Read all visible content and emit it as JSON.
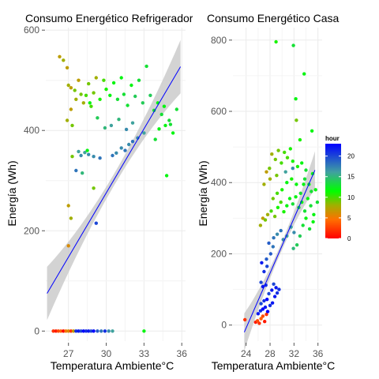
{
  "legend": {
    "title": "hour",
    "ticks": [
      0,
      5,
      10,
      15,
      20
    ],
    "range": [
      0,
      23
    ],
    "colors": {
      "low": "#ff0000",
      "mid": "#00ff00",
      "high": "#0000ff"
    }
  },
  "chart_data": [
    {
      "type": "scatter",
      "title": "Consumo Energético Refrigerador",
      "xlabel": "Temperatura Ambiente°C",
      "ylabel": "Energía (Wh)",
      "xlim": [
        25.2,
        36.3
      ],
      "ylim": [
        -20,
        605
      ],
      "xticks": [
        27,
        30,
        33,
        36
      ],
      "yticks": [
        0,
        200,
        400,
        600
      ],
      "grid": true,
      "color_by": "hour",
      "trend": {
        "x": [
          25.3,
          35.9
        ],
        "y": [
          75,
          527
        ],
        "color": "#0000ff",
        "band": true
      },
      "points": [
        {
          "x": 25.8,
          "y": 0,
          "hour": 2
        },
        {
          "x": 26.0,
          "y": 0,
          "hour": 1
        },
        {
          "x": 26.2,
          "y": 0,
          "hour": 3
        },
        {
          "x": 26.4,
          "y": 0,
          "hour": 4
        },
        {
          "x": 26.6,
          "y": 0,
          "hour": 0
        },
        {
          "x": 26.8,
          "y": 0,
          "hour": 5
        },
        {
          "x": 27.0,
          "y": 0,
          "hour": 6
        },
        {
          "x": 27.2,
          "y": 0,
          "hour": 2
        },
        {
          "x": 27.4,
          "y": 0,
          "hour": 7
        },
        {
          "x": 27.6,
          "y": 0,
          "hour": 21
        },
        {
          "x": 27.8,
          "y": 0,
          "hour": 22
        },
        {
          "x": 28.0,
          "y": 0,
          "hour": 20
        },
        {
          "x": 28.2,
          "y": 0,
          "hour": 23
        },
        {
          "x": 28.4,
          "y": 0,
          "hour": 21
        },
        {
          "x": 28.6,
          "y": 0,
          "hour": 22
        },
        {
          "x": 28.8,
          "y": 0,
          "hour": 20
        },
        {
          "x": 29.0,
          "y": 0,
          "hour": 23
        },
        {
          "x": 29.3,
          "y": 0,
          "hour": 19
        },
        {
          "x": 29.6,
          "y": 0,
          "hour": 18
        },
        {
          "x": 29.9,
          "y": 0,
          "hour": 21
        },
        {
          "x": 30.2,
          "y": 0,
          "hour": 17
        },
        {
          "x": 30.5,
          "y": 0,
          "hour": 16
        },
        {
          "x": 33.0,
          "y": 0,
          "hour": 12
        },
        {
          "x": 26.3,
          "y": 547,
          "hour": 7
        },
        {
          "x": 26.6,
          "y": 540,
          "hour": 8
        },
        {
          "x": 26.9,
          "y": 525,
          "hour": 7
        },
        {
          "x": 27.0,
          "y": 490,
          "hour": 8
        },
        {
          "x": 27.2,
          "y": 485,
          "hour": 7
        },
        {
          "x": 27.5,
          "y": 480,
          "hour": 9
        },
        {
          "x": 27.6,
          "y": 462,
          "hour": 8
        },
        {
          "x": 27.8,
          "y": 500,
          "hour": 7
        },
        {
          "x": 28.0,
          "y": 472,
          "hour": 9
        },
        {
          "x": 28.2,
          "y": 455,
          "hour": 8
        },
        {
          "x": 28.4,
          "y": 470,
          "hour": 10
        },
        {
          "x": 28.6,
          "y": 493,
          "hour": 9
        },
        {
          "x": 28.8,
          "y": 448,
          "hour": 10
        },
        {
          "x": 29.0,
          "y": 475,
          "hour": 9
        },
        {
          "x": 29.2,
          "y": 505,
          "hour": 8
        },
        {
          "x": 29.5,
          "y": 462,
          "hour": 11
        },
        {
          "x": 29.8,
          "y": 500,
          "hour": 10
        },
        {
          "x": 30.0,
          "y": 482,
          "hour": 11
        },
        {
          "x": 30.3,
          "y": 470,
          "hour": 12
        },
        {
          "x": 30.6,
          "y": 495,
          "hour": 12
        },
        {
          "x": 30.9,
          "y": 462,
          "hour": 13
        },
        {
          "x": 31.2,
          "y": 505,
          "hour": 12
        },
        {
          "x": 31.4,
          "y": 472,
          "hour": 13
        },
        {
          "x": 31.7,
          "y": 450,
          "hour": 13
        },
        {
          "x": 32.0,
          "y": 490,
          "hour": 12
        },
        {
          "x": 32.3,
          "y": 468,
          "hour": 14
        },
        {
          "x": 32.6,
          "y": 500,
          "hour": 13
        },
        {
          "x": 32.9,
          "y": 455,
          "hour": 14
        },
        {
          "x": 33.2,
          "y": 528,
          "hour": 13
        },
        {
          "x": 33.5,
          "y": 470,
          "hour": 14
        },
        {
          "x": 33.8,
          "y": 440,
          "hour": 13
        },
        {
          "x": 34.1,
          "y": 455,
          "hour": 12
        },
        {
          "x": 34.4,
          "y": 432,
          "hour": 13
        },
        {
          "x": 34.7,
          "y": 410,
          "hour": 12
        },
        {
          "x": 35.0,
          "y": 420,
          "hour": 13
        },
        {
          "x": 35.3,
          "y": 395,
          "hour": 12
        },
        {
          "x": 35.6,
          "y": 442,
          "hour": 13
        },
        {
          "x": 34.2,
          "y": 403,
          "hour": 12
        },
        {
          "x": 33.9,
          "y": 382,
          "hour": 13
        },
        {
          "x": 34.6,
          "y": 448,
          "hour": 12
        },
        {
          "x": 35.1,
          "y": 412,
          "hour": 13
        },
        {
          "x": 34.8,
          "y": 310,
          "hour": 12
        },
        {
          "x": 27.2,
          "y": 442,
          "hour": 7
        },
        {
          "x": 26.9,
          "y": 420,
          "hour": 8
        },
        {
          "x": 27.3,
          "y": 410,
          "hour": 9
        },
        {
          "x": 28.7,
          "y": 455,
          "hour": 12
        },
        {
          "x": 29.3,
          "y": 425,
          "hour": 14
        },
        {
          "x": 29.9,
          "y": 405,
          "hour": 15
        },
        {
          "x": 30.4,
          "y": 410,
          "hour": 16
        },
        {
          "x": 31.0,
          "y": 422,
          "hour": 15
        },
        {
          "x": 31.6,
          "y": 402,
          "hour": 17
        },
        {
          "x": 32.1,
          "y": 415,
          "hour": 16
        },
        {
          "x": 32.5,
          "y": 385,
          "hour": 17
        },
        {
          "x": 33.0,
          "y": 395,
          "hour": 16
        },
        {
          "x": 31.2,
          "y": 365,
          "hour": 17
        },
        {
          "x": 31.5,
          "y": 360,
          "hour": 18
        },
        {
          "x": 31.8,
          "y": 372,
          "hour": 17
        },
        {
          "x": 32.1,
          "y": 378,
          "hour": 18
        },
        {
          "x": 30.8,
          "y": 355,
          "hour": 17
        },
        {
          "x": 30.5,
          "y": 350,
          "hour": 18
        },
        {
          "x": 29.5,
          "y": 345,
          "hour": 18
        },
        {
          "x": 29.0,
          "y": 348,
          "hour": 17
        },
        {
          "x": 28.6,
          "y": 352,
          "hour": 17
        },
        {
          "x": 28.3,
          "y": 356,
          "hour": 16
        },
        {
          "x": 28.0,
          "y": 350,
          "hour": 17
        },
        {
          "x": 27.8,
          "y": 358,
          "hour": 16
        },
        {
          "x": 27.6,
          "y": 320,
          "hour": 18
        },
        {
          "x": 28.1,
          "y": 315,
          "hour": 15
        },
        {
          "x": 27.3,
          "y": 348,
          "hour": 9
        },
        {
          "x": 27.0,
          "y": 250,
          "hour": 7
        },
        {
          "x": 27.2,
          "y": 225,
          "hour": 8
        },
        {
          "x": 27.0,
          "y": 170,
          "hour": 6
        },
        {
          "x": 29.2,
          "y": 215,
          "hour": 20
        },
        {
          "x": 29.0,
          "y": 285,
          "hour": 9
        },
        {
          "x": 28.5,
          "y": 360,
          "hour": 12
        }
      ]
    },
    {
      "type": "scatter",
      "title": "Consumo Energético Casa",
      "xlabel": "Temperatura Ambiente°C",
      "ylabel": "Energía (Wh)",
      "xlim": [
        21.8,
        36.7
      ],
      "ylim": [
        -45,
        835
      ],
      "xticks": [
        24,
        28,
        32,
        36
      ],
      "yticks": [
        0,
        200,
        400,
        600,
        800
      ],
      "grid": true,
      "color_by": "hour",
      "trend": {
        "x": [
          23.7,
          35.5
        ],
        "y": [
          -20,
          435
        ],
        "color": "#0000ff",
        "band": true
      },
      "points": [
        {
          "x": 23.8,
          "y": 15,
          "hour": 2
        },
        {
          "x": 25.6,
          "y": 8,
          "hour": 1
        },
        {
          "x": 25.9,
          "y": 12,
          "hour": 3
        },
        {
          "x": 26.2,
          "y": 5,
          "hour": 2
        },
        {
          "x": 26.5,
          "y": 18,
          "hour": 4
        },
        {
          "x": 26.8,
          "y": 25,
          "hour": 3
        },
        {
          "x": 27.1,
          "y": 10,
          "hour": 1
        },
        {
          "x": 27.4,
          "y": 30,
          "hour": 2
        },
        {
          "x": 26.0,
          "y": 32,
          "hour": 22
        },
        {
          "x": 26.4,
          "y": 40,
          "hour": 21
        },
        {
          "x": 26.8,
          "y": 45,
          "hour": 23
        },
        {
          "x": 27.2,
          "y": 50,
          "hour": 22
        },
        {
          "x": 27.6,
          "y": 38,
          "hour": 23
        },
        {
          "x": 28.0,
          "y": 55,
          "hour": 21
        },
        {
          "x": 28.4,
          "y": 62,
          "hour": 22
        },
        {
          "x": 26.5,
          "y": 60,
          "hour": 20
        },
        {
          "x": 27.0,
          "y": 68,
          "hour": 21
        },
        {
          "x": 27.5,
          "y": 72,
          "hour": 23
        },
        {
          "x": 28.8,
          "y": 80,
          "hour": 22
        },
        {
          "x": 29.2,
          "y": 90,
          "hour": 21
        },
        {
          "x": 27.8,
          "y": 88,
          "hour": 20
        },
        {
          "x": 28.3,
          "y": 98,
          "hour": 22
        },
        {
          "x": 26.8,
          "y": 108,
          "hour": 22
        },
        {
          "x": 27.3,
          "y": 112,
          "hour": 21
        },
        {
          "x": 28.6,
          "y": 115,
          "hour": 20
        },
        {
          "x": 29.0,
          "y": 105,
          "hour": 22
        },
        {
          "x": 29.5,
          "y": 100,
          "hour": 21
        },
        {
          "x": 26.5,
          "y": 120,
          "hour": 20
        },
        {
          "x": 27.0,
          "y": 150,
          "hour": 21
        },
        {
          "x": 27.5,
          "y": 165,
          "hour": 20
        },
        {
          "x": 26.6,
          "y": 175,
          "hour": 22
        },
        {
          "x": 27.4,
          "y": 185,
          "hour": 19
        },
        {
          "x": 28.1,
          "y": 200,
          "hour": 19
        },
        {
          "x": 28.5,
          "y": 220,
          "hour": 18
        },
        {
          "x": 27.8,
          "y": 230,
          "hour": 19
        },
        {
          "x": 28.6,
          "y": 245,
          "hour": 18
        },
        {
          "x": 29.2,
          "y": 255,
          "hour": 17
        },
        {
          "x": 29.8,
          "y": 265,
          "hour": 18
        },
        {
          "x": 30.2,
          "y": 240,
          "hour": 17
        },
        {
          "x": 30.8,
          "y": 250,
          "hour": 16
        },
        {
          "x": 31.5,
          "y": 275,
          "hour": 16
        },
        {
          "x": 32.0,
          "y": 260,
          "hour": 17
        },
        {
          "x": 26.4,
          "y": 280,
          "hour": 8
        },
        {
          "x": 26.8,
          "y": 300,
          "hour": 7
        },
        {
          "x": 27.2,
          "y": 295,
          "hour": 9
        },
        {
          "x": 27.6,
          "y": 310,
          "hour": 8
        },
        {
          "x": 28.2,
          "y": 320,
          "hour": 10
        },
        {
          "x": 28.8,
          "y": 305,
          "hour": 9
        },
        {
          "x": 29.3,
          "y": 330,
          "hour": 11
        },
        {
          "x": 29.8,
          "y": 345,
          "hour": 10
        },
        {
          "x": 30.3,
          "y": 318,
          "hour": 11
        },
        {
          "x": 30.8,
          "y": 335,
          "hour": 12
        },
        {
          "x": 31.3,
          "y": 355,
          "hour": 12
        },
        {
          "x": 31.8,
          "y": 340,
          "hour": 13
        },
        {
          "x": 32.3,
          "y": 360,
          "hour": 12
        },
        {
          "x": 32.8,
          "y": 330,
          "hour": 13
        },
        {
          "x": 33.3,
          "y": 345,
          "hour": 12
        },
        {
          "x": 33.8,
          "y": 320,
          "hour": 13
        },
        {
          "x": 34.3,
          "y": 355,
          "hour": 12
        },
        {
          "x": 34.8,
          "y": 335,
          "hour": 13
        },
        {
          "x": 35.3,
          "y": 310,
          "hour": 12
        },
        {
          "x": 33.5,
          "y": 280,
          "hour": 13
        },
        {
          "x": 34.0,
          "y": 300,
          "hour": 12
        },
        {
          "x": 34.6,
          "y": 270,
          "hour": 13
        },
        {
          "x": 35.2,
          "y": 290,
          "hour": 12
        },
        {
          "x": 33.0,
          "y": 250,
          "hour": 14
        },
        {
          "x": 32.5,
          "y": 225,
          "hour": 14
        },
        {
          "x": 31.9,
          "y": 215,
          "hour": 15
        },
        {
          "x": 34.9,
          "y": 375,
          "hour": 13
        },
        {
          "x": 35.6,
          "y": 380,
          "hour": 12
        },
        {
          "x": 35.9,
          "y": 345,
          "hour": 13
        },
        {
          "x": 34.5,
          "y": 395,
          "hour": 12
        },
        {
          "x": 33.8,
          "y": 410,
          "hour": 13
        },
        {
          "x": 35.1,
          "y": 425,
          "hour": 12
        },
        {
          "x": 34.0,
          "y": 435,
          "hour": 13
        },
        {
          "x": 33.3,
          "y": 455,
          "hour": 12
        },
        {
          "x": 32.6,
          "y": 445,
          "hour": 11
        },
        {
          "x": 31.8,
          "y": 460,
          "hour": 11
        },
        {
          "x": 30.9,
          "y": 470,
          "hour": 10
        },
        {
          "x": 29.9,
          "y": 455,
          "hour": 10
        },
        {
          "x": 28.9,
          "y": 465,
          "hour": 9
        },
        {
          "x": 28.3,
          "y": 480,
          "hour": 8
        },
        {
          "x": 29.4,
          "y": 490,
          "hour": 9
        },
        {
          "x": 30.4,
          "y": 485,
          "hour": 10
        },
        {
          "x": 31.4,
          "y": 495,
          "hour": 11
        },
        {
          "x": 29.1,
          "y": 420,
          "hour": 9
        },
        {
          "x": 28.0,
          "y": 410,
          "hour": 8
        },
        {
          "x": 27.0,
          "y": 395,
          "hour": 8
        },
        {
          "x": 27.4,
          "y": 430,
          "hour": 7
        },
        {
          "x": 27.9,
          "y": 440,
          "hour": 9
        },
        {
          "x": 30.8,
          "y": 400,
          "hour": 12
        },
        {
          "x": 31.6,
          "y": 410,
          "hour": 11
        },
        {
          "x": 32.4,
          "y": 395,
          "hour": 12
        },
        {
          "x": 30.0,
          "y": 380,
          "hour": 11
        },
        {
          "x": 29.2,
          "y": 370,
          "hour": 10
        },
        {
          "x": 28.5,
          "y": 355,
          "hour": 9
        },
        {
          "x": 33.6,
          "y": 395,
          "hour": 12
        },
        {
          "x": 33.1,
          "y": 370,
          "hour": 13
        },
        {
          "x": 35.0,
          "y": 545,
          "hour": 12
        },
        {
          "x": 32.4,
          "y": 575,
          "hour": 9
        },
        {
          "x": 31.8,
          "y": 440,
          "hour": 17
        },
        {
          "x": 30.6,
          "y": 430,
          "hour": 16
        },
        {
          "x": 29.0,
          "y": 795,
          "hour": 11
        },
        {
          "x": 31.9,
          "y": 785,
          "hour": 13
        },
        {
          "x": 33.7,
          "y": 705,
          "hour": 12
        },
        {
          "x": 32.3,
          "y": 635,
          "hour": 12
        },
        {
          "x": 33.0,
          "y": 520,
          "hour": 11
        }
      ]
    }
  ]
}
